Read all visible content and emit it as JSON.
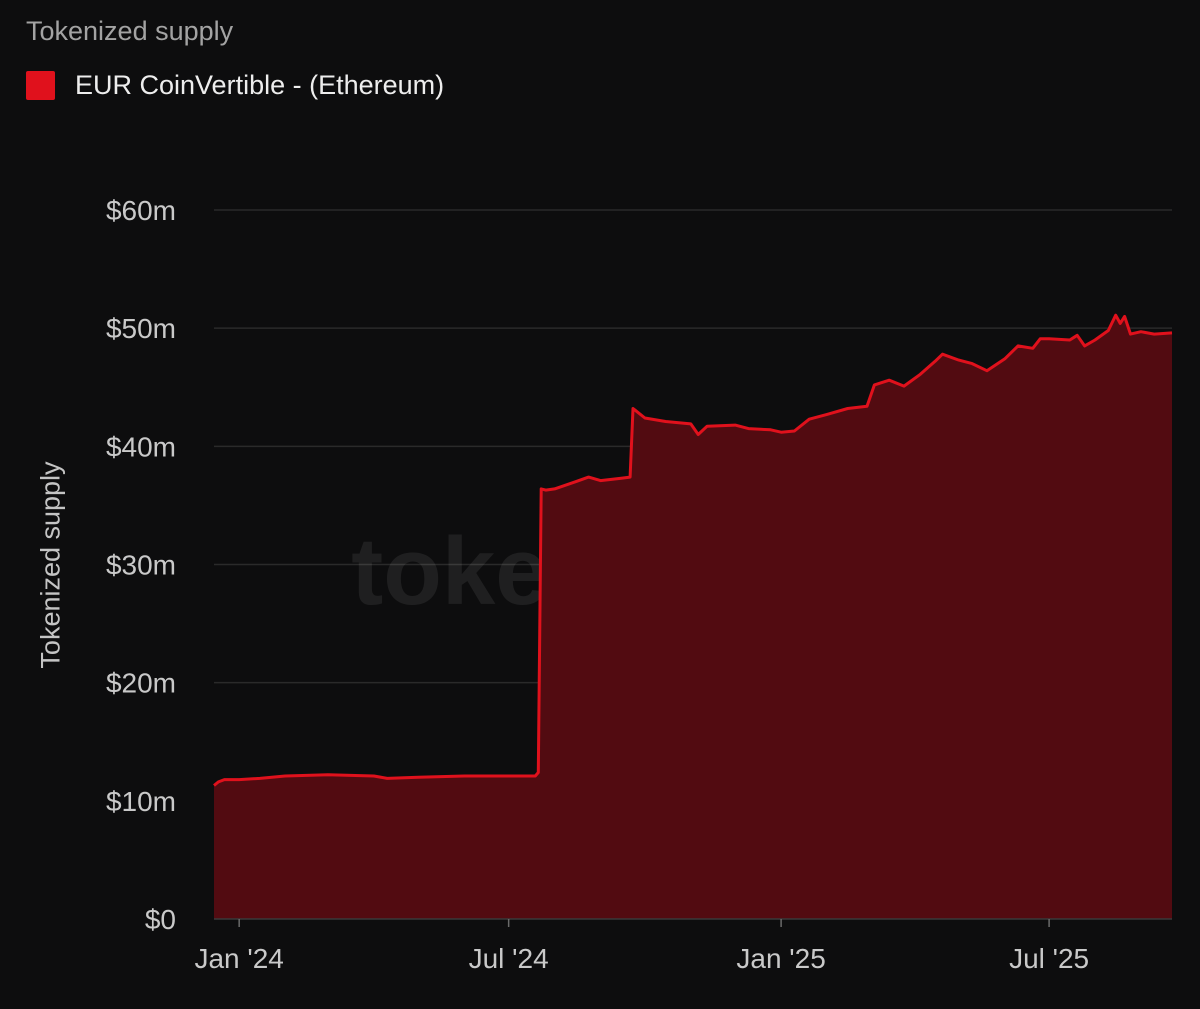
{
  "card": {
    "title": "Tokenized supply"
  },
  "colors": {
    "background": "#0d0d0e",
    "series": "#e0111c",
    "area_fill": "#520b11",
    "gridline": "#2a2a2a"
  },
  "watermark": "token terminal_",
  "chart_data": {
    "type": "area",
    "title": "Tokenized supply",
    "xlabel": "",
    "ylabel": "Tokenized supply",
    "legend_position": "top-left",
    "grid": true,
    "xlim": [
      "2023-12-15",
      "2025-09-22"
    ],
    "ylim": [
      0,
      60
    ],
    "y_unit": "$m",
    "y_ticks": [
      {
        "value": 0,
        "label": "$0"
      },
      {
        "value": 10,
        "label": "$10m"
      },
      {
        "value": 20,
        "label": "$20m"
      },
      {
        "value": 30,
        "label": "$30m"
      },
      {
        "value": 40,
        "label": "$40m"
      },
      {
        "value": 50,
        "label": "$50m"
      },
      {
        "value": 60,
        "label": "$60m"
      }
    ],
    "x_ticks": [
      {
        "date": "2024-01-01",
        "label": "Jan '24"
      },
      {
        "date": "2024-07-01",
        "label": "Jul '24"
      },
      {
        "date": "2025-01-01",
        "label": "Jan '25"
      },
      {
        "date": "2025-07-01",
        "label": "Jul '25"
      }
    ],
    "series": [
      {
        "name": "EUR CoinVertible - (Ethereum)",
        "color": "#e0111c",
        "points": [
          [
            "2023-12-15",
            11.3
          ],
          [
            "2023-12-18",
            11.6
          ],
          [
            "2023-12-22",
            11.8
          ],
          [
            "2024-01-01",
            11.8
          ],
          [
            "2024-01-15",
            11.9
          ],
          [
            "2024-02-01",
            12.1
          ],
          [
            "2024-03-01",
            12.2
          ],
          [
            "2024-04-01",
            12.1
          ],
          [
            "2024-04-10",
            11.9
          ],
          [
            "2024-05-01",
            12.0
          ],
          [
            "2024-06-01",
            12.1
          ],
          [
            "2024-07-01",
            12.1
          ],
          [
            "2024-07-19",
            12.1
          ],
          [
            "2024-07-21",
            12.4
          ],
          [
            "2024-07-23",
            36.4
          ],
          [
            "2024-07-26",
            36.3
          ],
          [
            "2024-08-01",
            36.4
          ],
          [
            "2024-08-15",
            37.0
          ],
          [
            "2024-08-24",
            37.4
          ],
          [
            "2024-09-01",
            37.1
          ],
          [
            "2024-09-15",
            37.3
          ],
          [
            "2024-09-21",
            37.4
          ],
          [
            "2024-09-23",
            43.2
          ],
          [
            "2024-10-01",
            42.4
          ],
          [
            "2024-10-15",
            42.1
          ],
          [
            "2024-11-01",
            41.9
          ],
          [
            "2024-11-06",
            41.0
          ],
          [
            "2024-11-12",
            41.7
          ],
          [
            "2024-12-01",
            41.8
          ],
          [
            "2024-12-10",
            41.5
          ],
          [
            "2024-12-25",
            41.4
          ],
          [
            "2025-01-01",
            41.2
          ],
          [
            "2025-01-10",
            41.3
          ],
          [
            "2025-01-20",
            42.3
          ],
          [
            "2025-02-01",
            42.7
          ],
          [
            "2025-02-15",
            43.2
          ],
          [
            "2025-02-28",
            43.4
          ],
          [
            "2025-03-05",
            45.2
          ],
          [
            "2025-03-15",
            45.6
          ],
          [
            "2025-03-25",
            45.1
          ],
          [
            "2025-04-05",
            46.1
          ],
          [
            "2025-04-15",
            47.2
          ],
          [
            "2025-04-20",
            47.8
          ],
          [
            "2025-05-01",
            47.3
          ],
          [
            "2025-05-10",
            47.0
          ],
          [
            "2025-05-20",
            46.4
          ],
          [
            "2025-06-01",
            47.4
          ],
          [
            "2025-06-10",
            48.5
          ],
          [
            "2025-06-20",
            48.3
          ],
          [
            "2025-06-25",
            49.1
          ],
          [
            "2025-07-01",
            49.1
          ],
          [
            "2025-07-15",
            49.0
          ],
          [
            "2025-07-20",
            49.4
          ],
          [
            "2025-07-25",
            48.5
          ],
          [
            "2025-08-01",
            49.0
          ],
          [
            "2025-08-10",
            49.8
          ],
          [
            "2025-08-15",
            51.1
          ],
          [
            "2025-08-18",
            50.4
          ],
          [
            "2025-08-21",
            51.0
          ],
          [
            "2025-08-25",
            49.5
          ],
          [
            "2025-09-01",
            49.7
          ],
          [
            "2025-09-10",
            49.5
          ],
          [
            "2025-09-22",
            49.6
          ]
        ]
      }
    ]
  }
}
